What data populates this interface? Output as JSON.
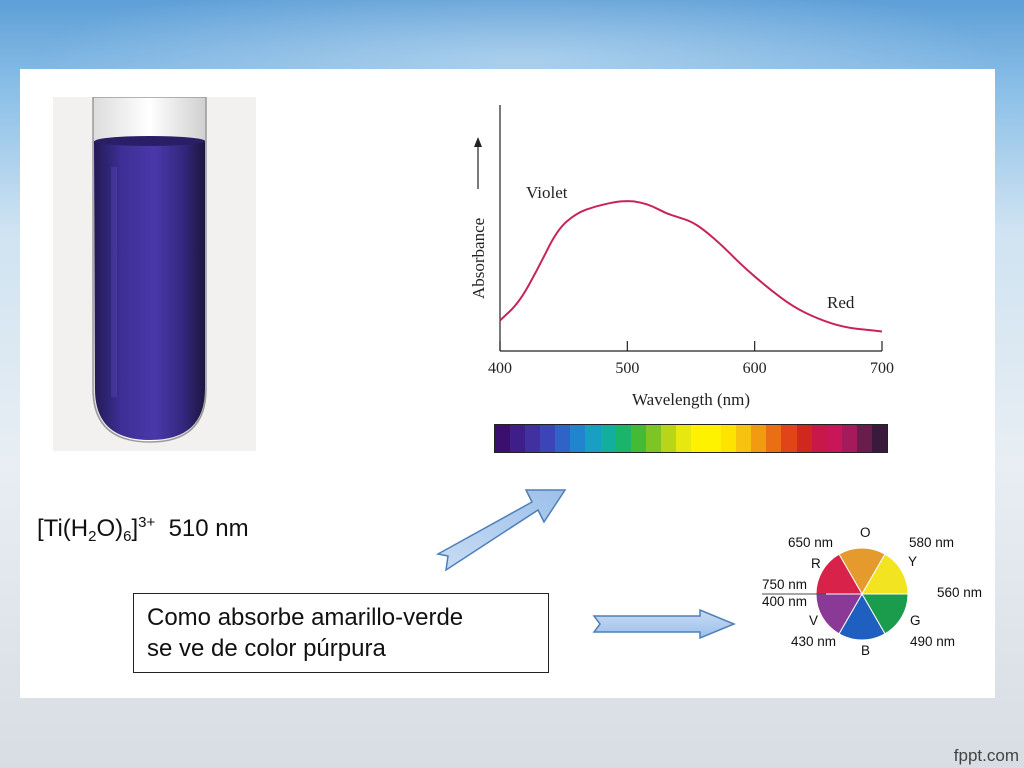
{
  "chart_data": {
    "type": "line",
    "xlabel": "Wavelength (nm)",
    "ylabel": "Absorbance",
    "x_ticks": [
      400,
      500,
      600,
      700
    ],
    "xlim": [
      400,
      700
    ],
    "annotations": {
      "low_wavelength": "Violet",
      "high_wavelength": "Red"
    },
    "series": [
      {
        "color": "#c8235a",
        "x": [
          400,
          415,
          430,
          445,
          460,
          475,
          490,
          500,
          510,
          520,
          530,
          540,
          550,
          560,
          575,
          590,
          610,
          630,
          650,
          670,
          690,
          700
        ],
        "y": [
          0.12,
          0.25,
          0.5,
          0.78,
          0.9,
          0.95,
          0.98,
          0.99,
          0.98,
          0.95,
          0.9,
          0.87,
          0.84,
          0.78,
          0.66,
          0.52,
          0.36,
          0.22,
          0.13,
          0.07,
          0.05,
          0.04
        ]
      }
    ]
  },
  "spectrum_colors": [
    "#3b0f70",
    "#3f1e8a",
    "#4030a0",
    "#3c45b6",
    "#2f63c8",
    "#2184cf",
    "#1a9fc4",
    "#12ae9e",
    "#1bb46b",
    "#44bb34",
    "#7cc524",
    "#b8d51a",
    "#e6e80f",
    "#fff200",
    "#fff200",
    "#fde300",
    "#f8c210",
    "#f29a12",
    "#ea6e14",
    "#e04418",
    "#d0271f",
    "#c8184a",
    "#c81658",
    "#a41a5a",
    "#6a1c4c",
    "#3a1a3c"
  ],
  "formula": {
    "prefix": "[Ti(H",
    "sub1": "2",
    "mid": "O)",
    "sub2": "6",
    "close": "]",
    "sup": "3+",
    "value": "510 nm"
  },
  "explanation": {
    "line1": "Como absorbe amarillo-verde",
    "line2": "se ve de color púrpura"
  },
  "color_wheel": {
    "segments": [
      {
        "letter": "O",
        "color": "#e59a2e"
      },
      {
        "letter": "Y",
        "color": "#f3e422"
      },
      {
        "letter": "G",
        "color": "#1b9b4c"
      },
      {
        "letter": "B",
        "color": "#1e5fbf"
      },
      {
        "letter": "V",
        "color": "#8a3a96"
      },
      {
        "letter": "R",
        "color": "#d8224a"
      }
    ],
    "wavelengths": {
      "o_r": "650 nm",
      "o_y": "580 nm",
      "y_g": "560 nm",
      "g_b": "490 nm",
      "b_v": "430 nm",
      "r_top": "750 nm",
      "v_top": "400 nm"
    }
  },
  "tube_color": "#3a2a8a",
  "footer": "fppt.com"
}
